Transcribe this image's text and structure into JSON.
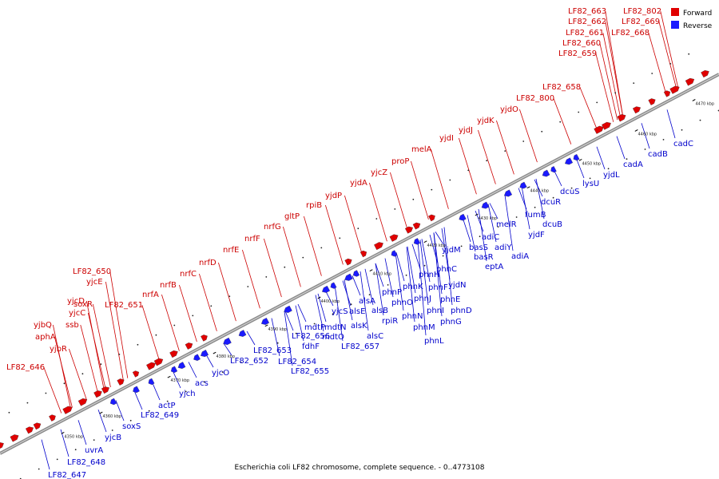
{
  "caption": "Escherichia coli LF82 chromosome, complete sequence. - 0..4773108",
  "legend": {
    "forward_label": "Forward",
    "reverse_label": "Reverse",
    "forward_color": "#e00000",
    "reverse_color": "#1a1aff"
  },
  "ticks": [
    "4350 kbp",
    "4360 kbp",
    "4370 kbp",
    "4380 kbp",
    "4390 kbp",
    "4400 kbp",
    "4410 kbp",
    "4420 kbp",
    "4430 kbp",
    "4440 kbp",
    "4450 kbp",
    "4460 kbp",
    "4470 kbp"
  ],
  "forward_genes": [
    "LF82_646",
    "yjbQ",
    "aphA",
    "yjbR",
    "ssb",
    "yjcC",
    "yjcD",
    "soxR",
    "yjcE",
    "LF82_650",
    "LF82_651",
    "nrfA",
    "nrfB",
    "nrfC",
    "nrfD",
    "nrfE",
    "nrfF",
    "nrfG",
    "gltP",
    "rpiB",
    "yjdP",
    "yjdA",
    "yjcZ",
    "proP",
    "melA",
    "yjdI",
    "yjdJ",
    "yjdK",
    "yjdO",
    "LF82_800",
    "LF82_658",
    "LF82_659",
    "LF82_660",
    "LF82_661",
    "LF82_662",
    "LF82_663",
    "LF82_668",
    "LF82_669",
    "LF82_802"
  ],
  "reverse_genes": [
    "LF82_647",
    "LF82_648",
    "uvrA",
    "yjcB",
    "soxS",
    "LF82_649",
    "actP",
    "yjch",
    "acs",
    "yjcO",
    "LF82_652",
    "LF82_653",
    "LF82_654",
    "LF82_655",
    "LF82_656",
    "fdhF",
    "mdtP",
    "mdtN",
    "mdtO",
    "LF82_657",
    "alsC",
    "alsK",
    "yjcS",
    "alsE",
    "alsA",
    "alsB",
    "rpiR",
    "phnP",
    "phnO",
    "phnN",
    "phnM",
    "phnL",
    "phnK",
    "phnJ",
    "phnI",
    "phnH",
    "phnG",
    "phnF",
    "phnE",
    "phnD",
    "phnC",
    "yjdN",
    "yjdM",
    "basS",
    "basR",
    "eptA",
    "adiC",
    "adiY",
    "adiA",
    "melR",
    "yjdF",
    "fumB",
    "dcuB",
    "dcuR",
    "dcuS",
    "lysU",
    "yjdL",
    "cadA",
    "cadB",
    "cadC"
  ]
}
